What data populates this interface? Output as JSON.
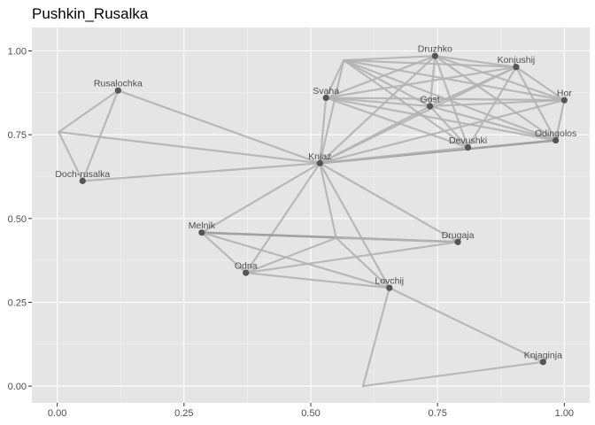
{
  "chart_data": {
    "type": "scatter",
    "title": "Pushkin_Rusalka",
    "xlabel": "",
    "ylabel": "",
    "xlim": [
      -0.05,
      1.05
    ],
    "ylim": [
      -0.05,
      1.07
    ],
    "x_ticks": [
      {
        "value": 0.0,
        "label": "0.00"
      },
      {
        "value": 0.25,
        "label": "0.25"
      },
      {
        "value": 0.5,
        "label": "0.50"
      },
      {
        "value": 0.75,
        "label": "0.75"
      },
      {
        "value": 1.0,
        "label": "1.00"
      }
    ],
    "y_ticks": [
      {
        "value": 0.0,
        "label": "0.00"
      },
      {
        "value": 0.25,
        "label": "0.25"
      },
      {
        "value": 0.5,
        "label": "0.50"
      },
      {
        "value": 0.75,
        "label": "0.75"
      },
      {
        "value": 1.0,
        "label": "1.00"
      }
    ],
    "grid": true,
    "colors": {
      "panel": "#e5e5e5",
      "grid_major": "#ffffff",
      "edge": "#b3b3b3",
      "edge_strong": "#999999",
      "node": "#555555",
      "label": "#4d4d4d"
    },
    "nodes": [
      {
        "id": "Druzhko",
        "label": "Druzhko",
        "x": 0.745,
        "y": 0.985
      },
      {
        "id": "Konjushij",
        "label": "Konjushij",
        "x": 0.905,
        "y": 0.952
      },
      {
        "id": "Svaha",
        "label": "Svaha",
        "x": 0.53,
        "y": 0.86
      },
      {
        "id": "Gost",
        "label": "Gost",
        "x": 0.735,
        "y": 0.835
      },
      {
        "id": "Hor",
        "label": "Hor",
        "x": 1.0,
        "y": 0.853
      },
      {
        "id": "Rusalochka",
        "label": "Rusalochka",
        "x": 0.12,
        "y": 0.882
      },
      {
        "id": "Odingolos",
        "label": "Odingolos",
        "x": 0.983,
        "y": 0.733
      },
      {
        "id": "Devushki",
        "label": "Devushki",
        "x": 0.81,
        "y": 0.712
      },
      {
        "id": "Knjaz",
        "label": "Knjaz",
        "x": 0.518,
        "y": 0.665
      },
      {
        "id": "Doch-rusalka",
        "label": "Doch-rusalka",
        "x": 0.05,
        "y": 0.612
      },
      {
        "id": "Melnik",
        "label": "Melnik",
        "x": 0.285,
        "y": 0.458
      },
      {
        "id": "Drugaja",
        "label": "Drugaja",
        "x": 0.79,
        "y": 0.43
      },
      {
        "id": "Odna",
        "label": "Odna",
        "x": 0.372,
        "y": 0.338
      },
      {
        "id": "Lovchij",
        "label": "Lovchij",
        "x": 0.655,
        "y": 0.293
      },
      {
        "id": "Knjaginja",
        "label": "Knjaginja",
        "x": 0.958,
        "y": 0.072
      },
      {
        "id": "u1",
        "label": "",
        "x": 0.565,
        "y": 0.972
      },
      {
        "id": "u2",
        "label": "",
        "x": 0.003,
        "y": 0.758
      },
      {
        "id": "u3",
        "label": "",
        "x": 0.55,
        "y": 0.442
      },
      {
        "id": "u4",
        "label": "",
        "x": 0.603,
        "y": 0.0
      }
    ],
    "edges": [
      {
        "from": "u1",
        "to": "Druzhko",
        "weight": 1
      },
      {
        "from": "u1",
        "to": "Konjushij",
        "weight": 1
      },
      {
        "from": "u1",
        "to": "Gost",
        "weight": 1
      },
      {
        "from": "u1",
        "to": "Hor",
        "weight": 1
      },
      {
        "from": "u1",
        "to": "Odingolos",
        "weight": 1
      },
      {
        "from": "u1",
        "to": "Devushki",
        "weight": 1
      },
      {
        "from": "u1",
        "to": "Svaha",
        "weight": 1
      },
      {
        "from": "u1",
        "to": "Knjaz",
        "weight": 1
      },
      {
        "from": "Druzhko",
        "to": "Svaha",
        "weight": 1
      },
      {
        "from": "Druzhko",
        "to": "Gost",
        "weight": 1
      },
      {
        "from": "Druzhko",
        "to": "Hor",
        "weight": 1
      },
      {
        "from": "Druzhko",
        "to": "Odingolos",
        "weight": 1
      },
      {
        "from": "Druzhko",
        "to": "Devushki",
        "weight": 1
      },
      {
        "from": "Druzhko",
        "to": "Knjaz",
        "weight": 1
      },
      {
        "from": "Druzhko",
        "to": "Konjushij",
        "weight": 1
      },
      {
        "from": "Konjushij",
        "to": "Svaha",
        "weight": 1
      },
      {
        "from": "Konjushij",
        "to": "Gost",
        "weight": 1
      },
      {
        "from": "Konjushij",
        "to": "Hor",
        "weight": 1
      },
      {
        "from": "Konjushij",
        "to": "Odingolos",
        "weight": 1
      },
      {
        "from": "Konjushij",
        "to": "Devushki",
        "weight": 1
      },
      {
        "from": "Konjushij",
        "to": "Knjaz",
        "weight": 1
      },
      {
        "from": "Svaha",
        "to": "Hor",
        "weight": 1
      },
      {
        "from": "Svaha",
        "to": "Gost",
        "weight": 1
      },
      {
        "from": "Svaha",
        "to": "Odingolos",
        "weight": 1
      },
      {
        "from": "Svaha",
        "to": "Devushki",
        "weight": 1
      },
      {
        "from": "Svaha",
        "to": "Knjaz",
        "weight": 1
      },
      {
        "from": "Gost",
        "to": "Hor",
        "weight": 1
      },
      {
        "from": "Gost",
        "to": "Odingolos",
        "weight": 1
      },
      {
        "from": "Gost",
        "to": "Devushki",
        "weight": 1
      },
      {
        "from": "Gost",
        "to": "Knjaz",
        "weight": 1
      },
      {
        "from": "Hor",
        "to": "Knjaz",
        "weight": 1
      },
      {
        "from": "Hor",
        "to": "Odingolos",
        "weight": 1
      },
      {
        "from": "Odingolos",
        "to": "Knjaz",
        "weight": 2
      },
      {
        "from": "Devushki",
        "to": "Knjaz",
        "weight": 1
      },
      {
        "from": "Rusalochka",
        "to": "u2",
        "weight": 1
      },
      {
        "from": "Rusalochka",
        "to": "Doch-rusalka",
        "weight": 1
      },
      {
        "from": "Rusalochka",
        "to": "Knjaz",
        "weight": 1
      },
      {
        "from": "u2",
        "to": "Doch-rusalka",
        "weight": 1
      },
      {
        "from": "u2",
        "to": "Knjaz",
        "weight": 1
      },
      {
        "from": "Doch-rusalka",
        "to": "Knjaz",
        "weight": 1
      },
      {
        "from": "Knjaz",
        "to": "Melnik",
        "weight": 1
      },
      {
        "from": "Knjaz",
        "to": "Odna",
        "weight": 1
      },
      {
        "from": "Knjaz",
        "to": "Lovchij",
        "weight": 1
      },
      {
        "from": "Knjaz",
        "to": "Drugaja",
        "weight": 1
      },
      {
        "from": "Knjaz",
        "to": "u3",
        "weight": 1
      },
      {
        "from": "Melnik",
        "to": "Drugaja",
        "weight": 2
      },
      {
        "from": "Melnik",
        "to": "Odna",
        "weight": 1
      },
      {
        "from": "Melnik",
        "to": "Lovchij",
        "weight": 1
      },
      {
        "from": "Odna",
        "to": "Drugaja",
        "weight": 1
      },
      {
        "from": "Odna",
        "to": "Lovchij",
        "weight": 1
      },
      {
        "from": "Odna",
        "to": "u3",
        "weight": 1
      },
      {
        "from": "u3",
        "to": "Drugaja",
        "weight": 1
      },
      {
        "from": "u3",
        "to": "Lovchij",
        "weight": 1
      },
      {
        "from": "Lovchij",
        "to": "Knjaginja",
        "weight": 1
      },
      {
        "from": "Lovchij",
        "to": "u4",
        "weight": 1
      },
      {
        "from": "u4",
        "to": "Knjaginja",
        "weight": 1
      }
    ]
  }
}
